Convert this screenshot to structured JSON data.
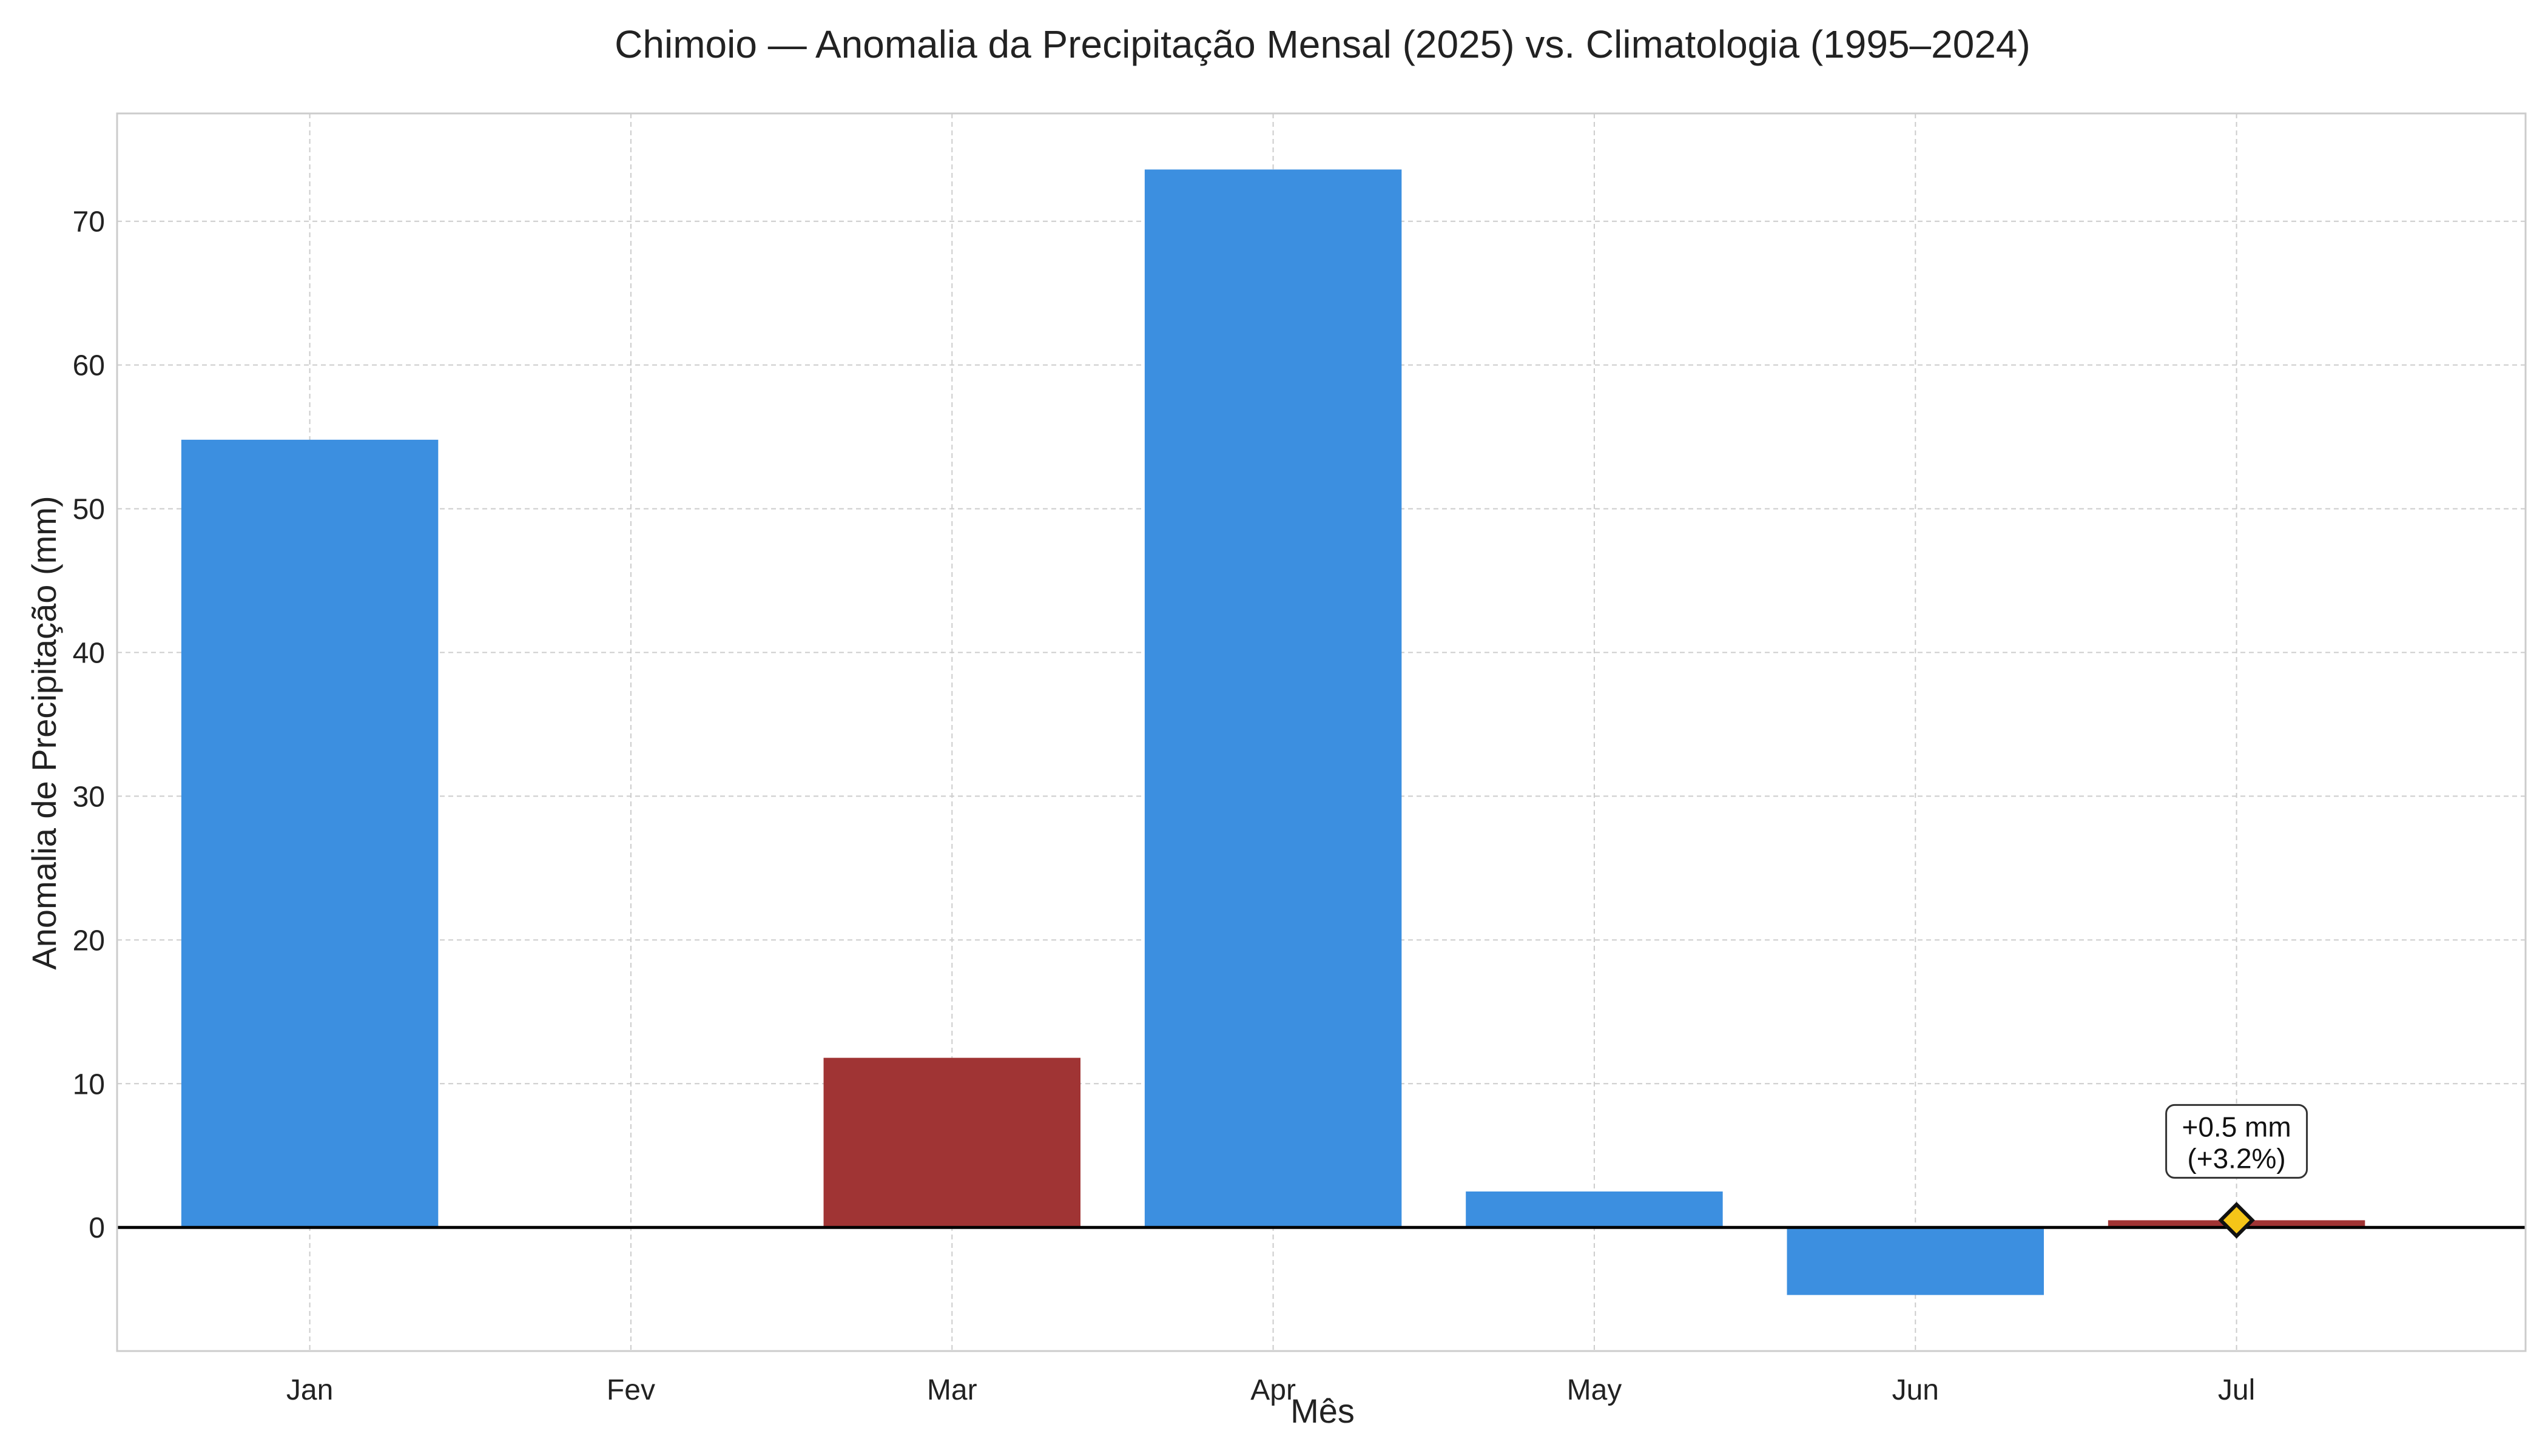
{
  "chart_data": {
    "type": "bar",
    "title": "Chimoio — Anomalia da Precipitação Mensal (2025) vs. Climatologia (1995–2024)",
    "xlabel": "Mês",
    "ylabel": "Anomalia de Precipitação (mm)",
    "categories": [
      "Jan",
      "Fev",
      "Mar",
      "Apr",
      "May",
      "Jun",
      "Jul"
    ],
    "values": [
      54.8,
      0,
      11.8,
      73.6,
      2.5,
      -4.7,
      0.5
    ],
    "bar_colors": [
      "#3c8fe0",
      "#3c8fe0",
      "#a03434",
      "#3c8fe0",
      "#3c8fe0",
      "#3c8fe0",
      "#a03434"
    ],
    "ylim": [
      -8.6,
      77.5
    ],
    "yticks": [
      0,
      10,
      20,
      30,
      40,
      50,
      60,
      70
    ],
    "grid": true,
    "zero_line": true,
    "annotation": {
      "category": "Jul",
      "value": 0.5,
      "line1": "+0.5 mm",
      "line2": "(+3.2%)",
      "marker": "diamond",
      "marker_color": "#f5c518"
    }
  }
}
